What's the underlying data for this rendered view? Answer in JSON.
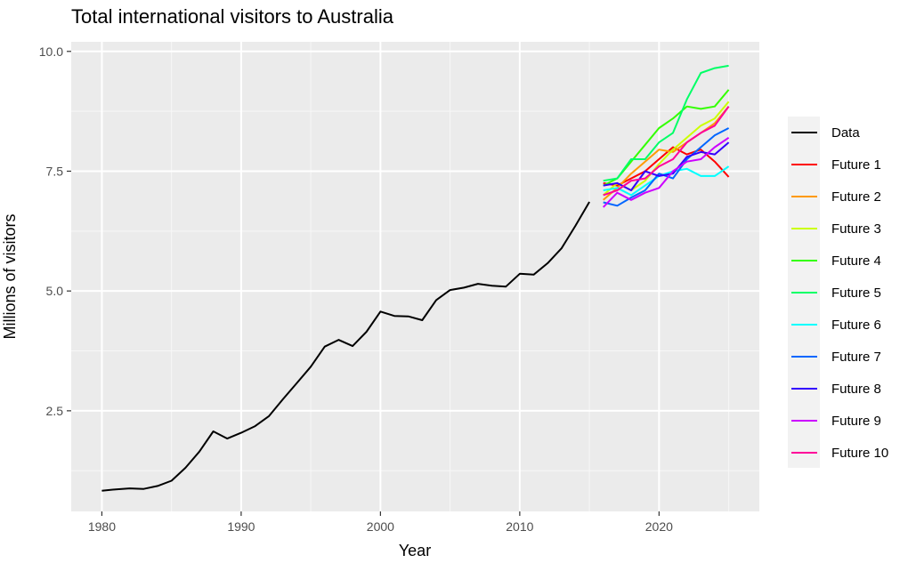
{
  "chart_data": {
    "type": "line",
    "title": "Total international visitors to Australia",
    "xlabel": "Year",
    "ylabel": "Millions of visitors",
    "xlim": [
      1977.8,
      2027.2
    ],
    "ylim": [
      0.4,
      10.2
    ],
    "x_ticks": [
      1980,
      1990,
      2000,
      2010,
      2020
    ],
    "y_ticks": [
      2.5,
      5.0,
      7.5,
      10.0
    ],
    "y_tick_labels": [
      "2.5",
      "5.0",
      "7.5",
      "10.0"
    ],
    "grid": true,
    "legend_position": "right",
    "series": [
      {
        "name": "Data",
        "color": "#000000",
        "x": [
          1980,
          1981,
          1982,
          1983,
          1984,
          1985,
          1986,
          1987,
          1988,
          1989,
          1990,
          1991,
          1992,
          1993,
          1994,
          1995,
          1996,
          1997,
          1998,
          1999,
          2000,
          2001,
          2002,
          2003,
          2004,
          2005,
          2006,
          2007,
          2008,
          2009,
          2010,
          2011,
          2012,
          2013,
          2014,
          2015
        ],
        "values": [
          0.83,
          0.86,
          0.88,
          0.87,
          0.93,
          1.04,
          1.31,
          1.65,
          2.07,
          1.92,
          2.04,
          2.18,
          2.39,
          2.74,
          3.08,
          3.42,
          3.84,
          3.98,
          3.85,
          4.15,
          4.57,
          4.48,
          4.47,
          4.39,
          4.81,
          5.02,
          5.07,
          5.15,
          5.11,
          5.09,
          5.36,
          5.34,
          5.58,
          5.89,
          6.36,
          6.86
        ]
      },
      {
        "name": "Future 1",
        "color": "#FF0000",
        "x": [
          2016,
          2017,
          2018,
          2019,
          2020,
          2021,
          2022,
          2023,
          2024,
          2025
        ],
        "values": [
          7.25,
          7.2,
          7.35,
          7.5,
          7.75,
          8.0,
          7.85,
          7.95,
          7.7,
          7.38
        ]
      },
      {
        "name": "Future 2",
        "color": "#FF9900",
        "x": [
          2016,
          2017,
          2018,
          2019,
          2020,
          2021,
          2022,
          2023,
          2024,
          2025
        ],
        "values": [
          6.9,
          7.15,
          7.45,
          7.7,
          7.95,
          7.9,
          8.1,
          8.3,
          8.5,
          8.85
        ]
      },
      {
        "name": "Future 3",
        "color": "#CCFF00",
        "x": [
          2016,
          2017,
          2018,
          2019,
          2020,
          2021,
          2022,
          2023,
          2024,
          2025
        ],
        "values": [
          7.0,
          7.25,
          7.1,
          7.3,
          7.65,
          7.95,
          8.2,
          8.45,
          8.6,
          8.95
        ]
      },
      {
        "name": "Future 4",
        "color": "#33FF00",
        "x": [
          2016,
          2017,
          2018,
          2019,
          2020,
          2021,
          2022,
          2023,
          2024,
          2025
        ],
        "values": [
          7.2,
          7.35,
          7.7,
          8.05,
          8.4,
          8.6,
          8.85,
          8.8,
          8.85,
          9.2
        ]
      },
      {
        "name": "Future 5",
        "color": "#00FF66",
        "x": [
          2016,
          2017,
          2018,
          2019,
          2020,
          2021,
          2022,
          2023,
          2024,
          2025
        ],
        "values": [
          7.3,
          7.35,
          7.75,
          7.75,
          8.1,
          8.3,
          9.0,
          9.55,
          9.65,
          9.7
        ]
      },
      {
        "name": "Future 6",
        "color": "#00FFFF",
        "x": [
          2016,
          2017,
          2018,
          2019,
          2020,
          2021,
          2022,
          2023,
          2024,
          2025
        ],
        "values": [
          7.1,
          7.15,
          7.0,
          7.2,
          7.4,
          7.5,
          7.55,
          7.4,
          7.4,
          7.6
        ]
      },
      {
        "name": "Future 7",
        "color": "#0066FF",
        "x": [
          2016,
          2017,
          2018,
          2019,
          2020,
          2021,
          2022,
          2023,
          2024,
          2025
        ],
        "values": [
          6.85,
          6.78,
          6.95,
          7.1,
          7.45,
          7.35,
          7.75,
          8.0,
          8.25,
          8.4
        ]
      },
      {
        "name": "Future 8",
        "color": "#3300FF",
        "x": [
          2016,
          2017,
          2018,
          2019,
          2020,
          2021,
          2022,
          2023,
          2024,
          2025
        ],
        "values": [
          7.2,
          7.25,
          7.1,
          7.5,
          7.4,
          7.45,
          7.8,
          7.9,
          7.85,
          8.1
        ]
      },
      {
        "name": "Future 9",
        "color": "#CC00FF",
        "x": [
          2016,
          2017,
          2018,
          2019,
          2020,
          2021,
          2022,
          2023,
          2024,
          2025
        ],
        "values": [
          6.75,
          7.05,
          6.9,
          7.05,
          7.15,
          7.5,
          7.7,
          7.75,
          8.0,
          8.2
        ]
      },
      {
        "name": "Future 10",
        "color": "#FF0099",
        "x": [
          2016,
          2017,
          2018,
          2019,
          2020,
          2021,
          2022,
          2023,
          2024,
          2025
        ],
        "values": [
          7.0,
          7.1,
          7.3,
          7.35,
          7.6,
          7.75,
          8.1,
          8.3,
          8.45,
          8.85
        ]
      }
    ]
  }
}
